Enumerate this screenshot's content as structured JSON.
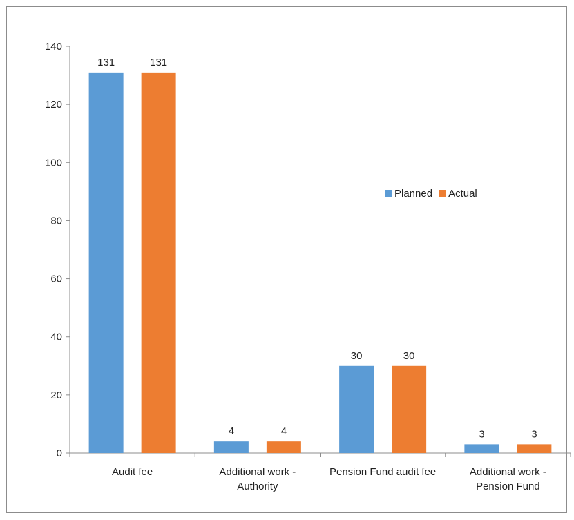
{
  "chart_data": {
    "type": "bar",
    "title": "",
    "xlabel": "",
    "ylabel": "",
    "categories": [
      [
        "Audit fee"
      ],
      [
        "Additional work -",
        "Authority"
      ],
      [
        "Pension Fund audit fee"
      ],
      [
        "Additional work -",
        "Pension Fund"
      ]
    ],
    "series": [
      {
        "name": "Planned",
        "color": "#5b9bd5",
        "values": [
          131,
          4,
          30,
          3
        ]
      },
      {
        "name": "Actual",
        "color": "#ed7d31",
        "values": [
          131,
          4,
          30,
          3
        ]
      }
    ],
    "ylim": [
      0,
      140
    ],
    "yticks": [
      0,
      20,
      40,
      60,
      80,
      100,
      120,
      140
    ],
    "grid": false,
    "legend_position": "right-center",
    "data_labels": true
  }
}
